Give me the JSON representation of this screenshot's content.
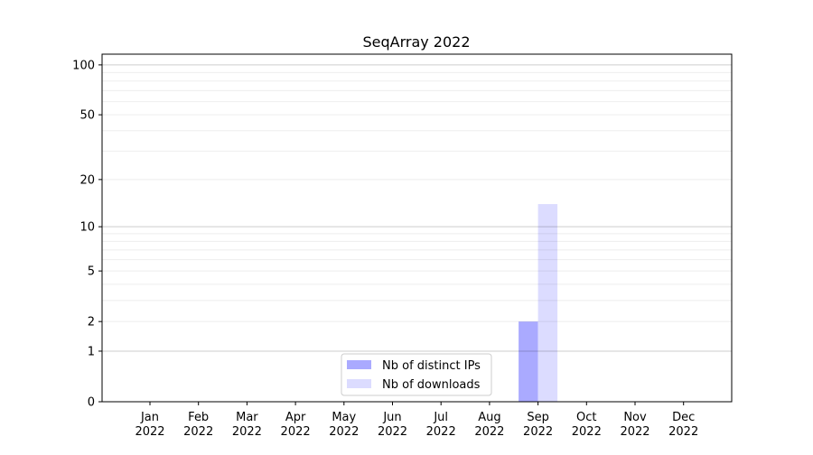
{
  "chart_data": {
    "type": "bar",
    "title": "SeqArray 2022",
    "xlabel": "",
    "ylabel": "",
    "y_scale": "log(1+y)",
    "ylim": [
      0,
      116
    ],
    "y_ticks": [
      0,
      1,
      2,
      5,
      10,
      20,
      50,
      100
    ],
    "grid": "horizontal, major and minor",
    "legend_placement": "lower-center",
    "categories": [
      "Jan\n2022",
      "Feb\n2022",
      "Mar\n2022",
      "Apr\n2022",
      "May\n2022",
      "Jun\n2022",
      "Jul\n2022",
      "Aug\n2022",
      "Sep\n2022",
      "Oct\n2022",
      "Nov\n2022",
      "Dec\n2022"
    ],
    "series": [
      {
        "name": "Nb of distinct IPs",
        "color": "#aaaaff",
        "values": [
          0,
          0,
          0,
          0,
          0,
          0,
          0,
          0,
          2,
          0,
          0,
          0
        ]
      },
      {
        "name": "Nb of downloads",
        "color": "#dcdcff",
        "values": [
          0,
          0,
          0,
          0,
          0,
          0,
          0,
          0,
          14,
          0,
          0,
          0
        ]
      }
    ]
  }
}
